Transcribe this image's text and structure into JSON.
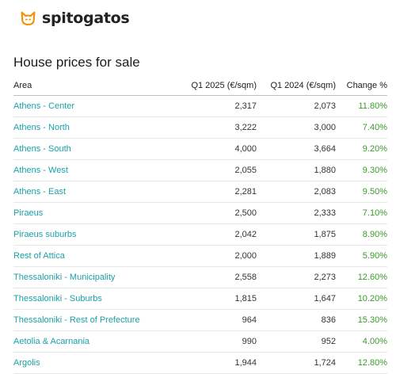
{
  "brand": {
    "name": "spitogatos",
    "icon": "cat-icon",
    "accent_color": "#f39200"
  },
  "title": "House prices for sale",
  "table": {
    "headers": [
      "Area",
      "Q1 2025 (€/sqm)",
      "Q1 2024 (€/sqm)",
      "Change %"
    ],
    "rows": [
      {
        "area": "Athens - Center",
        "q1_2025": "2,317",
        "q1_2024": "2,073",
        "change": "11.80%"
      },
      {
        "area": "Athens - North",
        "q1_2025": "3,222",
        "q1_2024": "3,000",
        "change": "7.40%"
      },
      {
        "area": "Athens - South",
        "q1_2025": "4,000",
        "q1_2024": "3,664",
        "change": "9.20%"
      },
      {
        "area": "Athens - West",
        "q1_2025": "2,055",
        "q1_2024": "1,880",
        "change": "9.30%"
      },
      {
        "area": "Athens - East",
        "q1_2025": "2,281",
        "q1_2024": "2,083",
        "change": "9.50%"
      },
      {
        "area": "Piraeus",
        "q1_2025": "2,500",
        "q1_2024": "2,333",
        "change": "7.10%"
      },
      {
        "area": "Piraeus suburbs",
        "q1_2025": "2,042",
        "q1_2024": "1,875",
        "change": "8.90%"
      },
      {
        "area": "Rest of Attica",
        "q1_2025": "2,000",
        "q1_2024": "1,889",
        "change": "5.90%"
      },
      {
        "area": "Thessaloniki - Municipality",
        "q1_2025": "2,558",
        "q1_2024": "2,273",
        "change": "12.60%"
      },
      {
        "area": "Thessaloniki - Suburbs",
        "q1_2025": "1,815",
        "q1_2024": "1,647",
        "change": "10.20%"
      },
      {
        "area": "Thessaloniki - Rest of Prefecture",
        "q1_2025": "964",
        "q1_2024": "836",
        "change": "15.30%"
      },
      {
        "area": "Aetolia & Acarnania",
        "q1_2025": "990",
        "q1_2024": "952",
        "change": "4.00%"
      },
      {
        "area": "Argolis",
        "q1_2025": "1,944",
        "q1_2024": "1,724",
        "change": "12.80%"
      }
    ]
  },
  "colors": {
    "link": "#1aa1a8",
    "positive_change": "#3c9a2c"
  }
}
